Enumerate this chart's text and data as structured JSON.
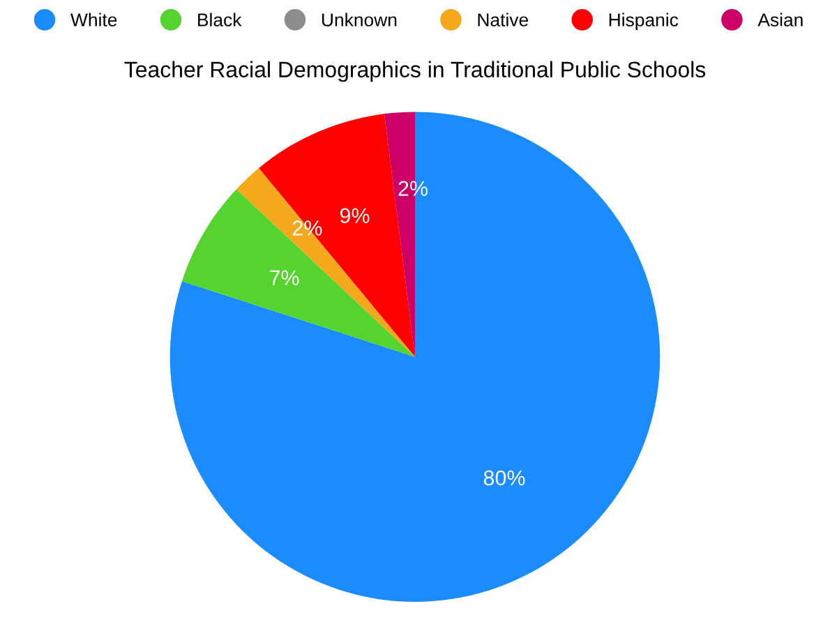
{
  "chart_data": {
    "type": "pie",
    "title": "Teacher Racial Demographics in Traditional Public Schools",
    "categories": [
      "White",
      "Black",
      "Unknown",
      "Native",
      "Hispanic",
      "Asian"
    ],
    "values": [
      80,
      7,
      0,
      2,
      9,
      2
    ],
    "colors": [
      "#1a8cff",
      "#55d42f",
      "#8c8c8c",
      "#f5a81b",
      "#ff0000",
      "#cc0066"
    ],
    "value_labels": [
      "80%",
      "7%",
      null,
      "2%",
      "9%",
      "2%"
    ],
    "legend": "top"
  }
}
